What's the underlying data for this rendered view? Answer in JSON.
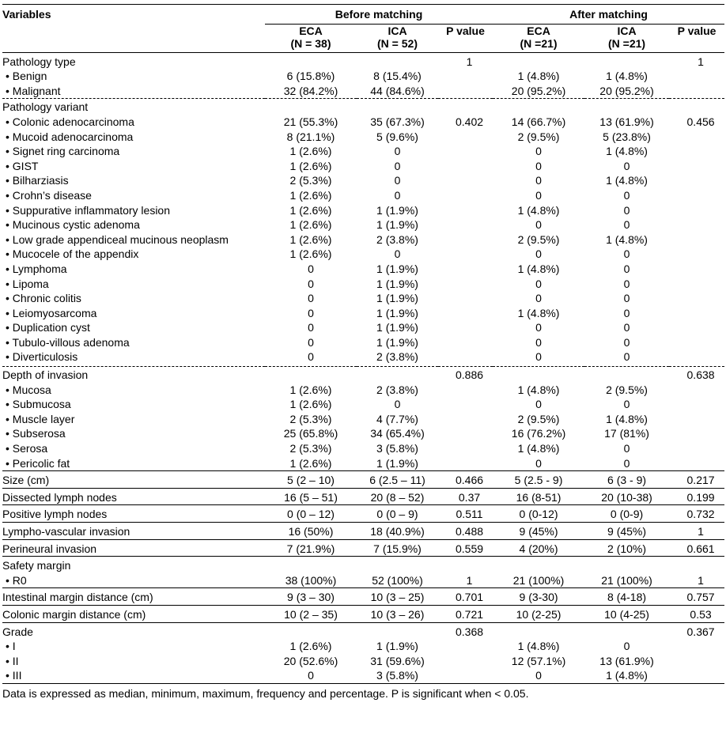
{
  "header": {
    "variables": "Variables",
    "before": "Before matching",
    "after": "After matching",
    "cols": [
      {
        "l1": "ECA",
        "l2": "(N = 38)"
      },
      {
        "l1": "ICA",
        "l2": "(N = 52)"
      },
      {
        "l1": "P value",
        "l2": ""
      },
      {
        "l1": "ECA",
        "l2": "(N =21)"
      },
      {
        "l1": "ICA",
        "l2": "(N =21)"
      },
      {
        "l1": "P value",
        "l2": ""
      }
    ]
  },
  "rows": [
    {
      "label": "Pathology type",
      "cells": [
        "",
        "",
        "1",
        "",
        "",
        "1"
      ],
      "sep": "solid"
    },
    {
      "label": "• Benign",
      "cells": [
        "6 (15.8%)",
        "8 (15.4%)",
        "",
        "1 (4.8%)",
        "1 (4.8%)",
        ""
      ],
      "sub": true
    },
    {
      "label": "• Malignant",
      "cells": [
        "32 (84.2%)",
        "44 (84.6%)",
        "",
        "20 (95.2%)",
        "20 (95.2%)",
        ""
      ],
      "sub": true
    },
    {
      "label": "Pathology variant",
      "cells": [
        "",
        "",
        "",
        "",
        "",
        ""
      ],
      "sep": "dashed"
    },
    {
      "label": "• Colonic adenocarcinoma",
      "cells": [
        "21 (55.3%)",
        "35 (67.3%)",
        "0.402",
        "14 (66.7%)",
        "13 (61.9%)",
        "0.456"
      ],
      "sub": true
    },
    {
      "label": "• Mucoid adenocarcinoma",
      "cells": [
        "8 (21.1%)",
        "5 (9.6%)",
        "",
        "2 (9.5%)",
        "5 (23.8%)",
        ""
      ],
      "sub": true
    },
    {
      "label": "• Signet ring carcinoma",
      "cells": [
        "1 (2.6%)",
        "0",
        "",
        "0",
        "1 (4.8%)",
        ""
      ],
      "sub": true
    },
    {
      "label": "• GIST",
      "cells": [
        "1 (2.6%)",
        "0",
        "",
        "0",
        "0",
        ""
      ],
      "sub": true
    },
    {
      "label": "• Bilharziasis",
      "cells": [
        "2 (5.3%)",
        "0",
        "",
        "0",
        "1 (4.8%)",
        ""
      ],
      "sub": true
    },
    {
      "label": "• Crohn’s disease",
      "cells": [
        "1 (2.6%)",
        "0",
        "",
        "0",
        "0",
        ""
      ],
      "sub": true
    },
    {
      "label": "• Suppurative inflammatory lesion",
      "cells": [
        "1 (2.6%)",
        "1 (1.9%)",
        "",
        "1 (4.8%)",
        "0",
        ""
      ],
      "sub": true
    },
    {
      "label": "• Mucinous cystic adenoma",
      "cells": [
        "1 (2.6%)",
        "1 (1.9%)",
        "",
        "0",
        "0",
        ""
      ],
      "sub": true
    },
    {
      "label": "• Low grade appendiceal mucinous neoplasm",
      "cells": [
        "1 (2.6%)",
        "2 (3.8%)",
        "",
        "2 (9.5%)",
        "1 (4.8%)",
        ""
      ],
      "sub": true
    },
    {
      "label": "• Mucocele of the appendix",
      "cells": [
        "1 (2.6%)",
        "0",
        "",
        "0",
        "0",
        ""
      ],
      "sub": true
    },
    {
      "label": "• Lymphoma",
      "cells": [
        "0",
        "1 (1.9%)",
        "",
        "1 (4.8%)",
        "0",
        ""
      ],
      "sub": true
    },
    {
      "label": "• Lipoma",
      "cells": [
        "0",
        "1 (1.9%)",
        "",
        "0",
        "0",
        ""
      ],
      "sub": true
    },
    {
      "label": "• Chronic colitis",
      "cells": [
        "0",
        "1 (1.9%)",
        "",
        "0",
        "0",
        ""
      ],
      "sub": true
    },
    {
      "label": "• Leiomyosarcoma",
      "cells": [
        "0",
        "1 (1.9%)",
        "",
        "1 (4.8%)",
        "0",
        ""
      ],
      "sub": true
    },
    {
      "label": "• Duplication cyst",
      "cells": [
        "0",
        "1 (1.9%)",
        "",
        "0",
        "0",
        ""
      ],
      "sub": true
    },
    {
      "label": "• Tubulo-villous adenoma",
      "cells": [
        "0",
        "1 (1.9%)",
        "",
        "0",
        "0",
        ""
      ],
      "sub": true
    },
    {
      "label": "• Diverticulosis",
      "cells": [
        "0",
        "2 (3.8%)",
        "",
        "0",
        "0",
        ""
      ],
      "sub": true,
      "last": true
    },
    {
      "label": "Depth of invasion",
      "cells": [
        "",
        "",
        "0.886",
        "",
        "",
        "0.638"
      ],
      "sep": "dashed"
    },
    {
      "label": "• Mucosa",
      "cells": [
        "1 (2.6%)",
        "2 (3.8%)",
        "",
        "1 (4.8%)",
        "2 (9.5%)",
        ""
      ],
      "sub": true
    },
    {
      "label": "• Submucosa",
      "cells": [
        "1 (2.6%)",
        "0",
        "",
        "0",
        "0",
        ""
      ],
      "sub": true
    },
    {
      "label": "• Muscle layer",
      "cells": [
        "2 (5.3%)",
        "4 (7.7%)",
        "",
        "2 (9.5%)",
        "1 (4.8%)",
        ""
      ],
      "sub": true
    },
    {
      "label": "• Subserosa",
      "cells": [
        "25 (65.8%)",
        "34 (65.4%)",
        "",
        "16 (76.2%)",
        "17 (81%)",
        ""
      ],
      "sub": true
    },
    {
      "label": "• Serosa",
      "cells": [
        "2 (5.3%)",
        "3 (5.8%)",
        "",
        "1 (4.8%)",
        "0",
        ""
      ],
      "sub": true
    },
    {
      "label": "• Pericolic fat",
      "cells": [
        "1 (2.6%)",
        "1 (1.9%)",
        "",
        "0",
        "0",
        ""
      ],
      "sub": true
    },
    {
      "label": "Size (cm)",
      "cells": [
        "5 (2 – 10)",
        "6 (2.5 – 11)",
        "0.466",
        "5 (2.5 - 9)",
        "6 (3 - 9)",
        "0.217"
      ],
      "sep": "solid"
    },
    {
      "label": "Dissected lymph nodes",
      "cells": [
        "16 (5 – 51)",
        "20 (8 – 52)",
        "0.37",
        "16 (8-51)",
        "20 (10-38)",
        "0.199"
      ],
      "sep": "solid"
    },
    {
      "label": "Positive lymph nodes",
      "cells": [
        "0 (0 – 12)",
        "0 (0 – 9)",
        "0.511",
        "0 (0-12)",
        "0 (0-9)",
        "0.732"
      ],
      "sep": "solid"
    },
    {
      "label": "Lympho-vascular invasion",
      "cells": [
        "16 (50%)",
        "18 (40.9%)",
        "0.488",
        "9 (45%)",
        "9 (45%)",
        "1"
      ],
      "sep": "solid"
    },
    {
      "label": "Perineural invasion",
      "cells": [
        "7 (21.9%)",
        "7 (15.9%)",
        "0.559",
        "4 (20%)",
        "2 (10%)",
        "0.661"
      ],
      "sep": "solid"
    },
    {
      "label": "Safety margin",
      "cells": [
        "",
        "",
        "",
        "",
        "",
        ""
      ],
      "sep": "solid"
    },
    {
      "label": "• R0",
      "cells": [
        "38 (100%)",
        "52 (100%)",
        "1",
        "21 (100%)",
        "21 (100%)",
        "1"
      ],
      "sub": true
    },
    {
      "label": "Intestinal margin distance (cm)",
      "cells": [
        "9 (3 – 30)",
        "10 (3 – 25)",
        "0.701",
        "9 (3-30)",
        "8 (4-18)",
        "0.757"
      ],
      "sep": "solid"
    },
    {
      "label": "Colonic margin distance (cm)",
      "cells": [
        "10 (2 – 35)",
        "10 (3 – 26)",
        "0.721",
        "10 (2-25)",
        "10 (4-25)",
        "0.53"
      ],
      "sep": "solid"
    },
    {
      "label": "Grade",
      "cells": [
        "",
        "",
        "0.368",
        "",
        "",
        "0.367"
      ],
      "sep": "solid"
    },
    {
      "label": "• I",
      "cells": [
        "1 (2.6%)",
        "1 (1.9%)",
        "",
        "1 (4.8%)",
        "0",
        ""
      ],
      "sub": true
    },
    {
      "label": "• II",
      "cells": [
        "20 (52.6%)",
        "31 (59.6%)",
        "",
        "12 (57.1%)",
        "13 (61.9%)",
        ""
      ],
      "sub": true
    },
    {
      "label": "• III",
      "cells": [
        "0",
        "3 (5.8%)",
        "",
        "0",
        "1 (4.8%)",
        ""
      ],
      "sub": true
    }
  ],
  "footnote": "Data is expressed as median, minimum, maximum, frequency and percentage. P is significant when < 0.05."
}
